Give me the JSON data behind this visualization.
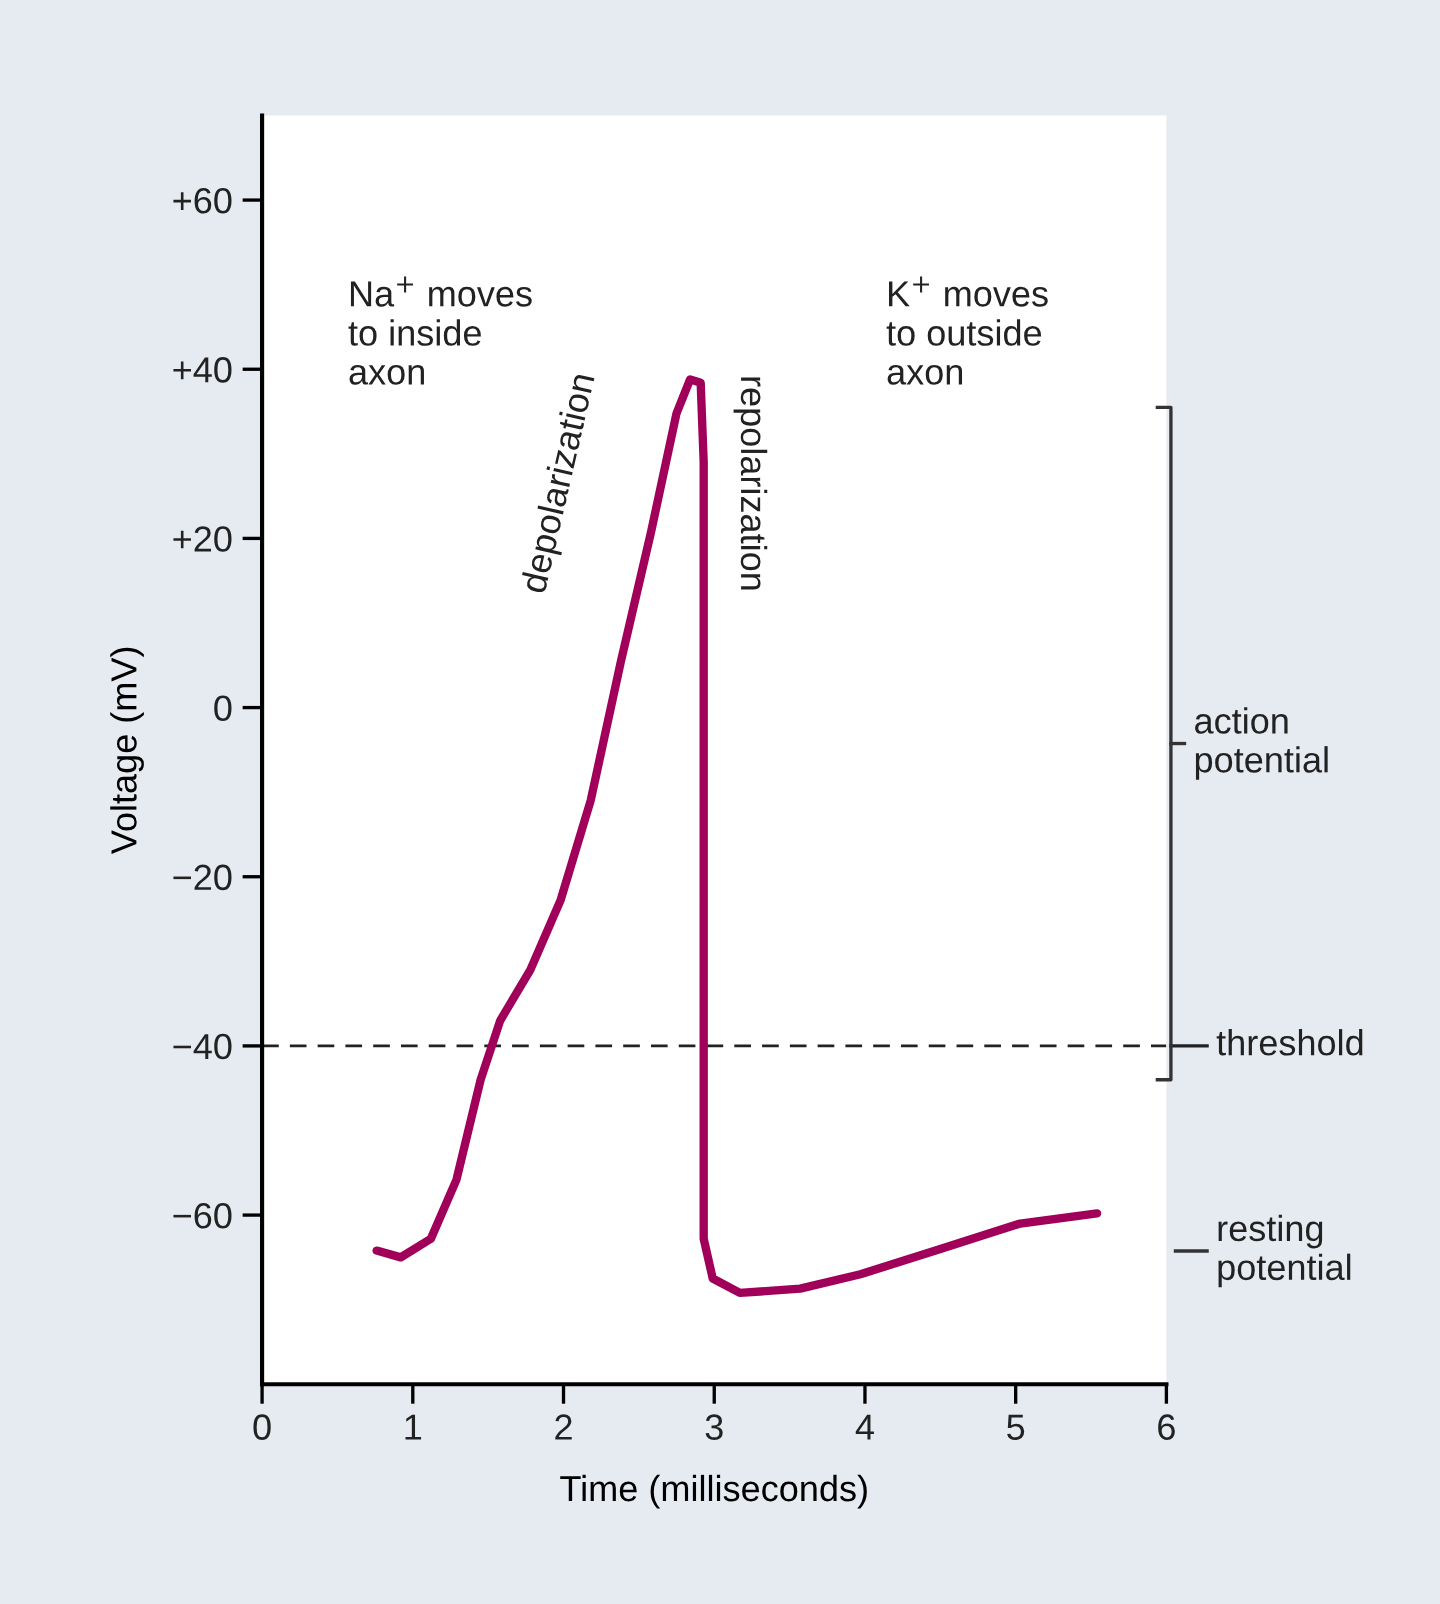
{
  "chart_data": {
    "type": "line",
    "xlabel": "Time (milliseconds)",
    "ylabel": "Voltage (mV)",
    "x": [
      0.76,
      0.92,
      1.12,
      1.29,
      1.45,
      1.58,
      1.78,
      1.98,
      2.18,
      2.38,
      2.58,
      2.75,
      2.84,
      2.91,
      2.93,
      2.93,
      2.93,
      2.99,
      3.17,
      3.57,
      3.97,
      4.5,
      5.03,
      5.54
    ],
    "series": [
      {
        "color": "#a0005a",
        "values": [
          -64.2,
          -65,
          -62.8,
          -55.8,
          -44,
          -37,
          -31,
          -22.8,
          -11,
          5.4,
          20.7,
          34.8,
          38.8,
          38.4,
          29,
          -11,
          -62.8,
          -67.5,
          -69.2,
          -68.7,
          -67,
          -64,
          -61,
          -59.8
        ]
      }
    ],
    "xlim": [
      0,
      6
    ],
    "xticks": [
      0,
      1,
      2,
      3,
      4,
      5,
      6
    ],
    "ylim": [
      -80,
      70
    ],
    "yticks": [
      {
        "value": 60,
        "label": "+60"
      },
      {
        "value": 40,
        "label": "+40"
      },
      {
        "value": 20,
        "label": "+20"
      },
      0,
      {
        "value": -20,
        "label": "−20"
      },
      {
        "value": -40,
        "label": "−40"
      },
      {
        "value": -60,
        "label": "−60"
      }
    ],
    "ref_lines": [
      {
        "axis": "y",
        "value": -40,
        "label": "threshold",
        "color": "#222222",
        "line_style": "dashed"
      }
    ],
    "annotations": [
      "Na$^{+}$ moves\nto inside\naxon",
      "depolarization",
      "repolarization",
      "K$^{+}$ moves\nto outside\naxon",
      "action\npotential",
      "resting\npotential"
    ],
    "grid": false,
    "legend": false,
    "marker": "none",
    "line_style": "solid"
  }
}
